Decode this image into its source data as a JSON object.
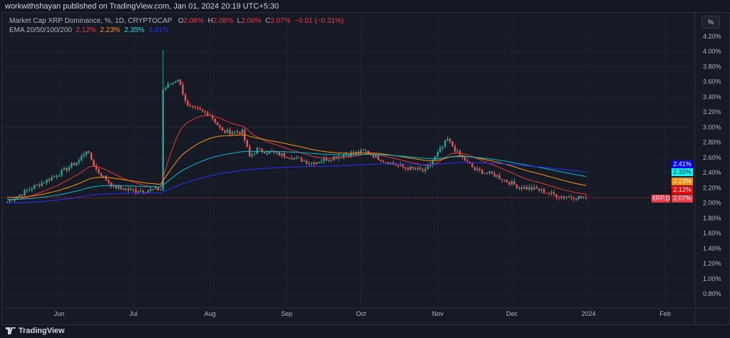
{
  "header": {
    "publisher": "workwithshayan published on TradingView.com, Jan 01, 2024 20:19 UTC+5:30"
  },
  "legend": {
    "symbol": "Market Cap XRP Dominance, %, 1D, CRYPTOCAP",
    "o_label": "O",
    "o": "2.08%",
    "h_label": "H",
    "h": "2.08%",
    "l_label": "L",
    "l": "2.06%",
    "c_label": "C",
    "c": "2.07%",
    "change": "−0.01 (−0.31%)",
    "ema_label": "EMA 20/50/100/200",
    "ema20": "2.12%",
    "ema50": "2.23%",
    "ema100": "2.35%",
    "ema200": "2.41%"
  },
  "scale_mode": "%",
  "footer": {
    "brand": "TradingView"
  },
  "colors": {
    "up": "#26a69a",
    "down": "#ef5350",
    "ema20": "#e53935",
    "ema50": "#ff9800",
    "ema100": "#00bcd4",
    "ema200": "#2a2fff",
    "bg": "#161a25"
  },
  "chart_data": {
    "type": "candlestick",
    "title": "Market Cap XRP Dominance, %, 1D, CRYPTOCAP",
    "symbol_tag": "XRP.D",
    "last_price": "2.07%",
    "ylim": [
      0.7,
      4.3
    ],
    "y_ticks": [
      "4.20%",
      "4.00%",
      "3.80%",
      "3.60%",
      "3.40%",
      "3.20%",
      "3.00%",
      "2.80%",
      "2.60%",
      "2.40%",
      "2.20%",
      "2.00%",
      "1.80%",
      "1.60%",
      "1.40%",
      "1.20%",
      "1.00%",
      "0.80%"
    ],
    "x_ticks": [
      {
        "label": "Jun",
        "date": "2023-06-01"
      },
      {
        "label": "Jul",
        "date": "2023-07-01"
      },
      {
        "label": "Aug",
        "date": "2023-08-01"
      },
      {
        "label": "Sep",
        "date": "2023-09-01"
      },
      {
        "label": "Oct",
        "date": "2023-10-01"
      },
      {
        "label": "Nov",
        "date": "2023-11-01"
      },
      {
        "label": "Dec",
        "date": "2023-12-01"
      },
      {
        "label": "2024",
        "date": "2024-01-01"
      },
      {
        "label": "Feb",
        "date": "2024-02-01"
      }
    ],
    "x_range": [
      "2023-05-10",
      "2024-02-20"
    ],
    "close_path": [
      [
        "2023-05-11",
        2.02
      ],
      [
        "2023-05-20",
        2.18
      ],
      [
        "2023-05-31",
        2.37
      ],
      [
        "2023-06-09",
        2.56
      ],
      [
        "2023-06-12",
        2.7
      ],
      [
        "2023-06-16",
        2.44
      ],
      [
        "2023-06-23",
        2.21
      ],
      [
        "2023-07-02",
        2.16
      ],
      [
        "2023-07-12",
        2.18
      ],
      [
        "2023-07-13",
        3.5
      ],
      [
        "2023-07-19",
        3.64
      ],
      [
        "2023-07-23",
        3.27
      ],
      [
        "2023-08-01",
        3.17
      ],
      [
        "2023-08-06",
        2.94
      ],
      [
        "2023-08-14",
        2.94
      ],
      [
        "2023-08-17",
        2.61
      ],
      [
        "2023-08-20",
        2.7
      ],
      [
        "2023-08-31",
        2.63
      ],
      [
        "2023-09-11",
        2.53
      ],
      [
        "2023-09-23",
        2.63
      ],
      [
        "2023-10-03",
        2.68
      ],
      [
        "2023-10-10",
        2.56
      ],
      [
        "2023-10-18",
        2.47
      ],
      [
        "2023-10-27",
        2.42
      ],
      [
        "2023-11-05",
        2.84
      ],
      [
        "2023-11-09",
        2.66
      ],
      [
        "2023-11-16",
        2.44
      ],
      [
        "2023-11-24",
        2.37
      ],
      [
        "2023-12-04",
        2.21
      ],
      [
        "2023-12-11",
        2.18
      ],
      [
        "2023-12-20",
        2.09
      ],
      [
        "2023-12-31",
        2.07
      ]
    ],
    "spike_high": {
      "date": "2023-07-13",
      "value": 4.02
    },
    "ema_last": {
      "ema20": 2.12,
      "ema50": 2.23,
      "ema100": 2.35,
      "ema200": 2.41
    }
  }
}
